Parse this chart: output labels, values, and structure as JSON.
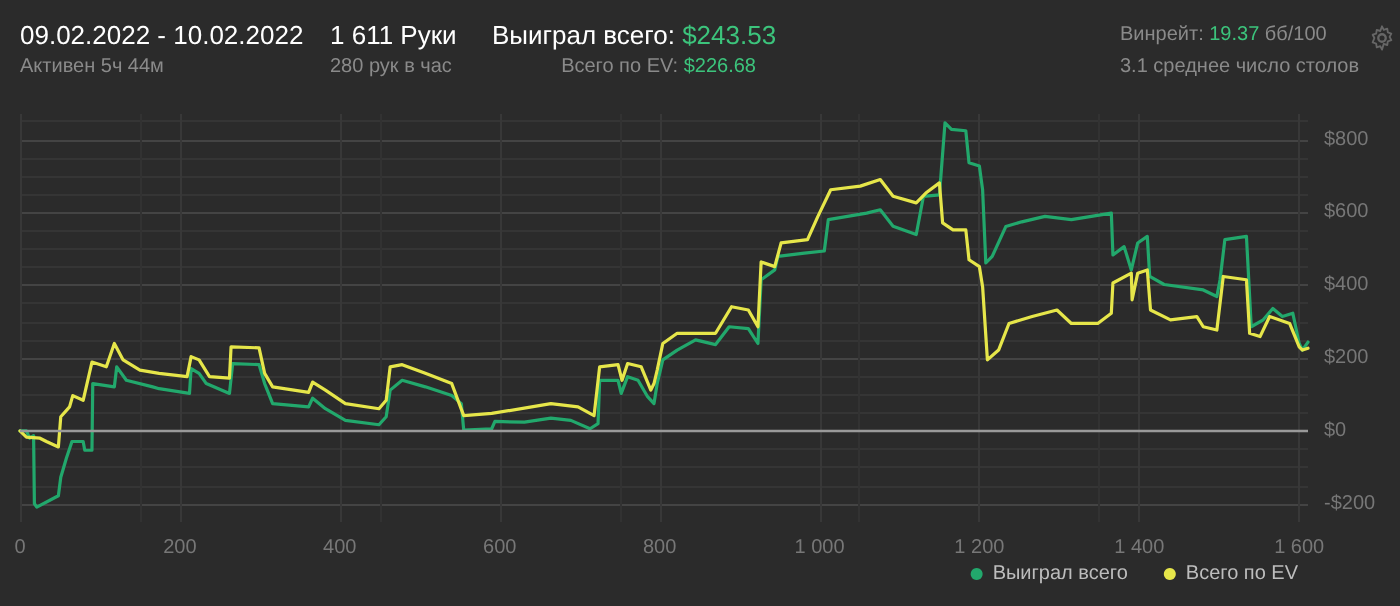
{
  "chart_data": {
    "type": "line",
    "title": "09.02.2022 - 10.02.2022",
    "subtitle": "Активен 5ч 44м",
    "annotations": [
      "1 611 Руки",
      "280 рук в час",
      "Выиграл всего: $243.53",
      "Всего по EV: $226.68",
      "Винрейт: 19.37 бб/100",
      "3.1 среднее число столов"
    ],
    "series": [
      {
        "name": "Выиграл всего",
        "color": "#22a86c",
        "x": [
          0,
          8,
          12,
          17,
          18,
          21,
          48,
          51,
          58,
          65,
          79,
          81,
          90,
          91,
          118,
          121,
          133,
          166,
          174,
          212,
          214,
          224,
          233,
          262,
          266,
          299,
          306,
          316,
          361,
          366,
          382,
          407,
          449,
          458,
          463,
          478,
          507,
          540,
          552,
          555,
          590,
          594,
          631,
          664,
          689,
          713,
          723,
          725,
          748,
          752,
          760,
          773,
          785,
          793,
          797,
          804,
          822,
          845,
          870,
          887,
          911,
          923,
          927,
          944,
          948,
          981,
          1006,
          1011,
          1059,
          1076,
          1092,
          1121,
          1130,
          1150,
          1157,
          1165,
          1183,
          1187,
          1200,
          1204,
          1208,
          1216,
          1233,
          1253,
          1282,
          1315,
          1365,
          1367,
          1381,
          1390,
          1398,
          1410,
          1413,
          1431,
          1480,
          1497,
          1501,
          1507,
          1534,
          1540,
          1555,
          1567,
          1579,
          1592,
          1600,
          1604,
          1611
        ],
        "values": [
          0,
          0,
          -20,
          -13,
          -200,
          -209,
          -178,
          -127,
          -75,
          -29,
          -29,
          -53,
          -53,
          130,
          121,
          176,
          139,
          121,
          116,
          103,
          171,
          158,
          130,
          103,
          185,
          182,
          130,
          75,
          66,
          90,
          61,
          29,
          17,
          39,
          112,
          139,
          121,
          97,
          75,
          2,
          6,
          26,
          24,
          35,
          29,
          6,
          20,
          139,
          139,
          103,
          149,
          139,
          94,
          75,
          130,
          195,
          222,
          250,
          237,
          286,
          281,
          240,
          415,
          442,
          479,
          488,
          494,
          580,
          598,
          607,
          562,
          539,
          644,
          648,
          846,
          828,
          824,
          736,
          727,
          662,
          461,
          479,
          561,
          574,
          589,
          580,
          598,
          483,
          506,
          442,
          516,
          534,
          424,
          402,
          387,
          369,
          415,
          525,
          534,
          286,
          305,
          336,
          314,
          323,
          240,
          222,
          244
        ]
      },
      {
        "name": "Всего по EV",
        "color": "#e6e64a",
        "x": [
          0,
          8,
          25,
          33,
          48,
          51,
          62,
          66,
          79,
          90,
          108,
          118,
          129,
          150,
          174,
          209,
          214,
          224,
          237,
          262,
          264,
          299,
          306,
          316,
          361,
          366,
          382,
          407,
          449,
          458,
          463,
          478,
          507,
          540,
          555,
          590,
          640,
          664,
          698,
          718,
          725,
          748,
          753,
          760,
          777,
          789,
          793,
          797,
          804,
          822,
          870,
          890,
          911,
          923,
          927,
          944,
          952,
          985,
          998,
          1014,
          1051,
          1076,
          1092,
          1121,
          1133,
          1150,
          1154,
          1167,
          1183,
          1187,
          1200,
          1204,
          1210,
          1224,
          1237,
          1266,
          1297,
          1315,
          1348,
          1365,
          1367,
          1390,
          1391,
          1398,
          1410,
          1414,
          1439,
          1472,
          1480,
          1497,
          1505,
          1534,
          1538,
          1551,
          1563,
          1588,
          1600,
          1604,
          1611
        ],
        "values": [
          0,
          -17,
          -20,
          -29,
          -44,
          39,
          66,
          97,
          84,
          189,
          176,
          240,
          195,
          167,
          158,
          149,
          204,
          195,
          149,
          145,
          231,
          228,
          158,
          121,
          106,
          134,
          112,
          75,
          61,
          84,
          176,
          182,
          158,
          130,
          42,
          48,
          66,
          75,
          66,
          42,
          176,
          182,
          139,
          185,
          176,
          112,
          130,
          167,
          240,
          268,
          268,
          341,
          332,
          286,
          464,
          451,
          516,
          525,
          589,
          662,
          672,
          690,
          644,
          626,
          653,
          681,
          571,
          552,
          552,
          470,
          451,
          396,
          195,
          222,
          295,
          314,
          332,
          295,
          295,
          323,
          406,
          433,
          360,
          433,
          442,
          332,
          305,
          314,
          286,
          277,
          424,
          415,
          268,
          259,
          314,
          295,
          231,
          222,
          227
        ]
      }
    ],
    "xlim": [
      0,
      1611
    ],
    "xticks": [
      0,
      200,
      400,
      600,
      800,
      {
        "value": 1000,
        "label": "1 000"
      },
      {
        "value": 1200,
        "label": "1 200"
      },
      {
        "value": 1400,
        "label": "1 400"
      },
      {
        "value": 1600,
        "label": "1 600"
      }
    ],
    "ylim": [
      -250,
      870
    ],
    "yticks": [
      {
        "value": -200,
        "label": "-$200"
      },
      {
        "value": 0,
        "label": "$0"
      },
      {
        "value": 200,
        "label": "$200"
      },
      {
        "value": 400,
        "label": "$400"
      },
      {
        "value": 600,
        "label": "$600"
      },
      {
        "value": 800,
        "label": "$800"
      }
    ],
    "ref_lines": [
      {
        "axis": "y",
        "value": 0,
        "label": null,
        "color": "#9a9a9a"
      }
    ],
    "grid": true,
    "legend": "bottom right",
    "marker": "none",
    "line_style": "solid"
  }
}
